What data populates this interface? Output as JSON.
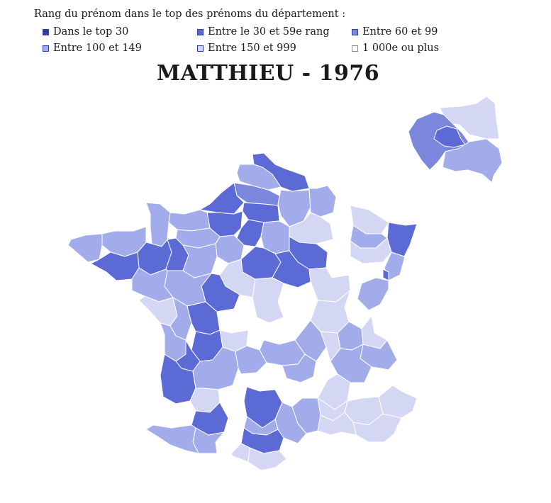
{
  "legend": {
    "title": "Rang du prénom dans le top des prénoms du département :",
    "items": [
      {
        "label": "Dans le top 30",
        "color": "#2e3a9e"
      },
      {
        "label": "Entre le 30 et 59e rang",
        "color": "#5b6ad4"
      },
      {
        "label": "Entre 60 et 99",
        "color": "#7b87dc"
      },
      {
        "label": "Entre 100 et 149",
        "color": "#a3acea"
      },
      {
        "label": "Entre 150 et 999",
        "color": "#d3d7f4"
      },
      {
        "label": "1 000e ou plus",
        "color": "#ffffff"
      }
    ]
  },
  "map": {
    "title": "MATTHIEU - 1976",
    "region_colors": {
      "top30": "#2e3a9e",
      "r30_59": "#5b6ad4",
      "r60_99": "#7b87dc",
      "r100_149": "#a3acea",
      "r150_999": "#d3d7f4",
      "r1000": "#ffffff"
    }
  }
}
